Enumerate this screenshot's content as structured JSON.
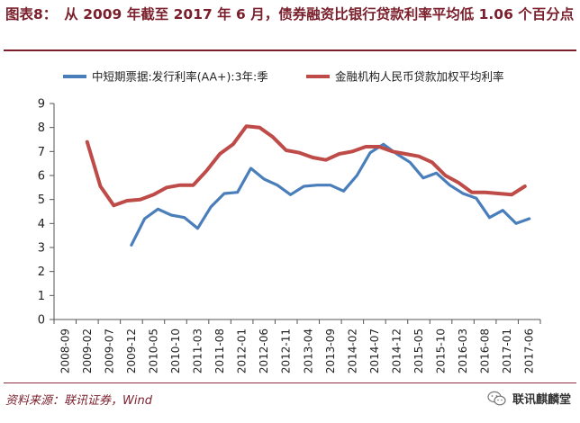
{
  "header": {
    "figure_number": "图表8：",
    "title": "从 2009 年截至 2017 年 6 月，债券融资比银行贷款利率平均低 1.06 个百分点"
  },
  "footer": {
    "source": "资料来源：联讯证券，Wind",
    "brand": "联讯麒麟堂",
    "brand_icon": "wechat-icon"
  },
  "colors": {
    "accent": "#7a1f2b",
    "series_blue": "#4a7ebb",
    "series_red": "#be4b48"
  },
  "chart_data": {
    "type": "line",
    "title": "",
    "xlabel": "",
    "ylabel": "",
    "ylim": [
      0,
      9
    ],
    "yticks": [
      "0",
      "1",
      "2",
      "3",
      "4",
      "5",
      "6",
      "7",
      "8",
      "9"
    ],
    "grid": false,
    "legend_position": "top",
    "categories": [
      "2008-09",
      "2009-02",
      "2009-07",
      "2009-12",
      "2010-05",
      "2010-10",
      "2011-03",
      "2011-08",
      "2012-01",
      "2012-06",
      "2012-11",
      "2013-04",
      "2013-09",
      "2014-02",
      "2014-07",
      "2014-12",
      "2015-05",
      "2015-10",
      "2016-03",
      "2016-08",
      "2017-01",
      "2017-06"
    ],
    "series": [
      {
        "name": "中短期票据:发行利率(AA+):3年:季",
        "color": "#4a7ebb",
        "x": [
          3,
          3.6,
          4.2,
          4.8,
          5.4,
          6,
          6.6,
          7.2,
          7.8,
          8.4,
          9,
          9.6,
          10.2,
          10.8,
          11.4,
          12,
          12.6,
          13.2,
          13.8,
          14.4,
          15,
          15.6,
          16.2,
          16.8,
          17.4,
          18,
          18.6,
          19.2,
          19.8,
          20.4,
          21
        ],
        "values": [
          3.1,
          4.2,
          4.6,
          4.35,
          4.25,
          3.8,
          4.7,
          5.25,
          5.3,
          6.3,
          5.85,
          5.6,
          5.2,
          5.55,
          5.6,
          5.6,
          5.35,
          6.0,
          6.95,
          7.3,
          6.9,
          6.55,
          5.9,
          6.1,
          5.6,
          5.25,
          5.05,
          4.25,
          4.55,
          4.0,
          4.2
        ]
      },
      {
        "name": "金融机构人民币贷款加权平均利率",
        "color": "#be4b48",
        "x": [
          1,
          1.6,
          2.2,
          2.8,
          3.4,
          4,
          4.6,
          5.2,
          5.8,
          6.4,
          7,
          7.6,
          8.2,
          8.8,
          9.4,
          10,
          10.6,
          11.2,
          11.8,
          12.4,
          13,
          13.6,
          14.2,
          14.8,
          15.4,
          16,
          16.6,
          17.2,
          17.8,
          18.4,
          19,
          19.6,
          20.2,
          20.8
        ],
        "values": [
          7.4,
          5.55,
          4.75,
          4.95,
          5.0,
          5.2,
          5.5,
          5.6,
          5.6,
          6.2,
          6.9,
          7.3,
          8.05,
          8.0,
          7.6,
          7.05,
          6.95,
          6.75,
          6.65,
          6.9,
          7.0,
          7.2,
          7.2,
          7.0,
          6.9,
          6.8,
          6.55,
          6.0,
          5.7,
          5.3,
          5.3,
          5.25,
          5.2,
          5.55
        ]
      }
    ]
  }
}
